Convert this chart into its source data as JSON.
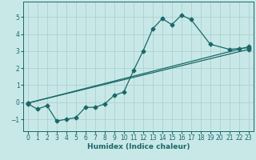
{
  "title": "",
  "xlabel": "Humidex (Indice chaleur)",
  "xlim": [
    -0.5,
    23.5
  ],
  "ylim": [
    -1.7,
    5.9
  ],
  "bg_color": "#c8e8e8",
  "grid_color": "#a8cccc",
  "line_color": "#1a6868",
  "xticks": [
    0,
    1,
    2,
    3,
    4,
    5,
    6,
    7,
    8,
    9,
    10,
    11,
    12,
    13,
    14,
    15,
    16,
    17,
    18,
    19,
    20,
    21,
    22,
    23
  ],
  "yticks": [
    -1,
    0,
    1,
    2,
    3,
    4,
    5
  ],
  "line1_x": [
    0,
    1,
    2,
    3,
    4,
    5,
    6,
    7,
    8,
    9,
    10,
    11,
    12,
    13,
    14,
    15,
    16,
    17,
    19,
    21,
    22,
    23
  ],
  "line1_y": [
    -0.1,
    -0.4,
    -0.2,
    -1.1,
    -1.0,
    -0.9,
    -0.3,
    -0.3,
    -0.1,
    0.4,
    0.6,
    1.85,
    3.0,
    4.3,
    4.9,
    4.55,
    5.1,
    4.85,
    3.4,
    3.1,
    3.15,
    3.2
  ],
  "line2_x": [
    0,
    23
  ],
  "line2_y": [
    -0.05,
    3.25
  ],
  "line3_x": [
    0,
    23
  ],
  "line3_y": [
    -0.05,
    3.1
  ]
}
